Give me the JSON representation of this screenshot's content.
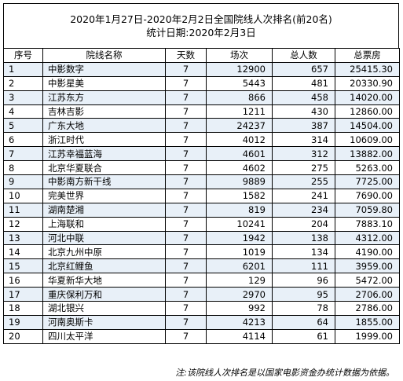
{
  "title": {
    "line1": "2020年1月27日-2020年2月2日全国院线人次排名(前20名)",
    "line2": "统计日期:2020年2月3日"
  },
  "columns": [
    "序号",
    "院线名称",
    "天数",
    "场次",
    "总人数",
    "总票房"
  ],
  "rows": [
    {
      "rank": "1",
      "name": "中影数字",
      "days": "7",
      "shows": "12900",
      "people": "657",
      "box": "25415.30"
    },
    {
      "rank": "2",
      "name": "中影星美",
      "days": "7",
      "shows": "5443",
      "people": "481",
      "box": "20330.90"
    },
    {
      "rank": "3",
      "name": "江苏东方",
      "days": "7",
      "shows": "866",
      "people": "458",
      "box": "14020.00"
    },
    {
      "rank": "4",
      "name": "吉林吉影",
      "days": "7",
      "shows": "1211",
      "people": "430",
      "box": "12860.00"
    },
    {
      "rank": "5",
      "name": "广东大地",
      "days": "7",
      "shows": "24237",
      "people": "387",
      "box": "14504.00"
    },
    {
      "rank": "6",
      "name": "浙江时代",
      "days": "7",
      "shows": "4012",
      "people": "314",
      "box": "10609.00"
    },
    {
      "rank": "7",
      "name": "江苏幸福蓝海",
      "days": "7",
      "shows": "4601",
      "people": "312",
      "box": "13882.00"
    },
    {
      "rank": "8",
      "name": "北京华夏联合",
      "days": "7",
      "shows": "4602",
      "people": "275",
      "box": "5263.00"
    },
    {
      "rank": "9",
      "name": "中影南方新干线",
      "days": "7",
      "shows": "9889",
      "people": "255",
      "box": "7725.00"
    },
    {
      "rank": "10",
      "name": "完美世界",
      "days": "7",
      "shows": "1582",
      "people": "241",
      "box": "7690.00"
    },
    {
      "rank": "11",
      "name": "湖南楚湘",
      "days": "7",
      "shows": "819",
      "people": "234",
      "box": "7059.80"
    },
    {
      "rank": "12",
      "name": "上海联和",
      "days": "7",
      "shows": "10241",
      "people": "204",
      "box": "7883.10"
    },
    {
      "rank": "13",
      "name": "河北中联",
      "days": "7",
      "shows": "1942",
      "people": "138",
      "box": "4312.00"
    },
    {
      "rank": "14",
      "name": "北京九州中原",
      "days": "7",
      "shows": "1019",
      "people": "134",
      "box": "4190.00"
    },
    {
      "rank": "15",
      "name": "北京红鲤鱼",
      "days": "7",
      "shows": "6201",
      "people": "111",
      "box": "3959.00"
    },
    {
      "rank": "16",
      "name": "华夏新华大地",
      "days": "7",
      "shows": "129",
      "people": "96",
      "box": "5472.00"
    },
    {
      "rank": "17",
      "name": "重庆保利万和",
      "days": "7",
      "shows": "2970",
      "people": "95",
      "box": "2706.00"
    },
    {
      "rank": "18",
      "name": "湖北银兴",
      "days": "7",
      "shows": "992",
      "people": "78",
      "box": "2786.00"
    },
    {
      "rank": "19",
      "name": "河南奥斯卡",
      "days": "7",
      "shows": "4213",
      "people": "64",
      "box": "1855.00"
    },
    {
      "rank": "20",
      "name": "四川太平洋",
      "days": "7",
      "shows": "4114",
      "people": "61",
      "box": "1999.00"
    }
  ],
  "note": "注:该院线人次排名是以国家电影资金办统计数据为依据。"
}
